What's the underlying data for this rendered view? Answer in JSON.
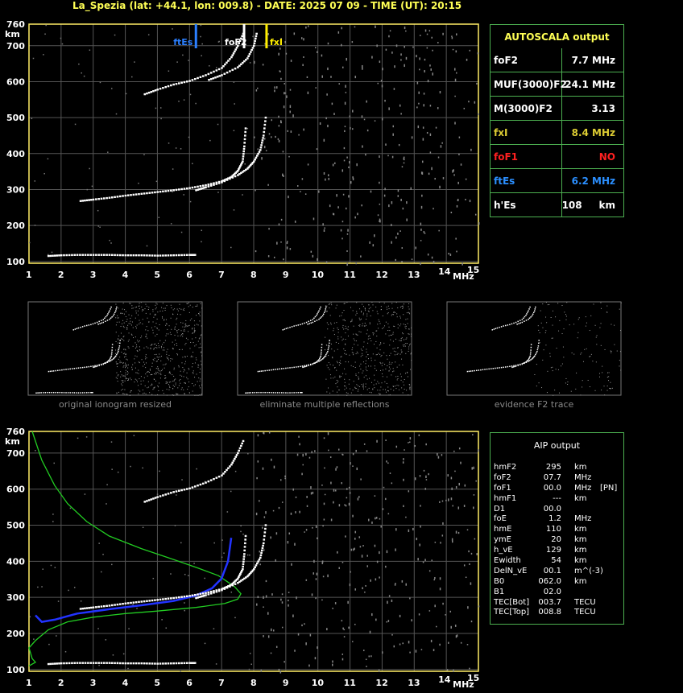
{
  "header": {
    "title": "La_Spezia (lat: +44.1, lon: 009.8) - DATE: 2025 07 09 - TIME (UT): 20:15"
  },
  "axes": {
    "y_unit": "km",
    "x_unit": "MHz",
    "y_ticks": [
      "760",
      "700",
      "600",
      "500",
      "400",
      "300",
      "200",
      "100"
    ],
    "y_tick_values": [
      760,
      700,
      600,
      500,
      400,
      300,
      200,
      100
    ],
    "x_ticks": [
      "1",
      "2",
      "3",
      "4",
      "5",
      "6",
      "7",
      "8",
      "9",
      "10",
      "11",
      "12",
      "13",
      "14",
      "15"
    ],
    "x_range": [
      1,
      15
    ],
    "y_range": [
      95,
      760
    ]
  },
  "markers": [
    {
      "label": "ftEs",
      "freq": 6.2,
      "color": "#2b7fff"
    },
    {
      "label": "foF2",
      "freq": 7.7,
      "color": "#ffffff"
    },
    {
      "label": "fxI",
      "freq": 8.4,
      "color": "#ffee00"
    }
  ],
  "autoscala": {
    "title": "AUTOSCALA output",
    "rows": [
      {
        "key": "foF2",
        "value": "7.7 MHz",
        "color": "#ffffff"
      },
      {
        "key": "MUF(3000)F2",
        "value": "24.1 MHz",
        "color": "#ffffff"
      },
      {
        "key": "M(3000)F2",
        "value": "3.13",
        "color": "#ffffff"
      },
      {
        "key": "fxI",
        "value": "8.4 MHz",
        "color": "#ddcc33"
      },
      {
        "key": "foF1",
        "value": "NO",
        "color": "#ff2020"
      },
      {
        "key": "ftEs",
        "value": "6.2 MHz",
        "color": "#2b8fff"
      },
      {
        "key": "h'Es",
        "value": "108     km",
        "color": "#ffffff"
      }
    ]
  },
  "thumbnails": [
    {
      "caption": "original ionogram resized"
    },
    {
      "caption": "eliminate multiple reflections"
    },
    {
      "caption": "evidence F2 trace"
    }
  ],
  "aip": {
    "title": "AIP output",
    "rows": [
      {
        "k": "hmF2",
        "v": "295",
        "u": "km",
        "x": ""
      },
      {
        "k": "foF2",
        "v": "07.7",
        "u": "MHz",
        "x": ""
      },
      {
        "k": "foF1",
        "v": "00.0",
        "u": "MHz",
        "x": "[PN]"
      },
      {
        "k": "hmF1",
        "v": "---",
        "u": "km",
        "x": ""
      },
      {
        "k": "D1",
        "v": "00.0",
        "u": "",
        "x": ""
      },
      {
        "k": "foE",
        "v": "1.2",
        "u": "MHz",
        "x": ""
      },
      {
        "k": "hmE",
        "v": "110",
        "u": "km",
        "x": ""
      },
      {
        "k": "ymE",
        "v": "20",
        "u": "km",
        "x": ""
      },
      {
        "k": "h_vE",
        "v": "129",
        "u": "km",
        "x": ""
      },
      {
        "k": "Ewidth",
        "v": "54",
        "u": "km",
        "x": ""
      },
      {
        "k": "DelN_vE",
        "v": "00.1",
        "u": "m^(-3)",
        "x": ""
      },
      {
        "k": "B0",
        "v": "062.0",
        "u": "km",
        "x": ""
      },
      {
        "k": "B1",
        "v": "02.0",
        "u": "",
        "x": ""
      },
      {
        "k": "TEC[Bot]",
        "v": "003.7",
        "u": "TECU",
        "x": ""
      },
      {
        "k": "TEC[Top]",
        "v": "008.8",
        "u": "TECU",
        "x": ""
      }
    ]
  },
  "chart_data": [
    {
      "type": "scatter",
      "title": "",
      "xlabel": "MHz",
      "ylabel": "km",
      "xlim": [
        1,
        15
      ],
      "ylim": [
        95,
        760
      ],
      "grid": true,
      "series": [
        {
          "values": [
            [
              1.6,
              115
            ],
            [
              2,
              117
            ],
            [
              2.5,
              118
            ],
            [
              3,
              118
            ],
            [
              3.5,
              118
            ],
            [
              4,
              117
            ],
            [
              4.5,
              117
            ],
            [
              5,
              116
            ],
            [
              5.5,
              117
            ],
            [
              6,
              118
            ],
            [
              6.2,
              118
            ]
          ]
        },
        {
          "values": [
            [
              2.6,
              268
            ],
            [
              3,
              272
            ],
            [
              3.5,
              277
            ],
            [
              4,
              283
            ],
            [
              4.5,
              288
            ],
            [
              5,
              293
            ],
            [
              5.5,
              298
            ],
            [
              6,
              304
            ],
            [
              6.5,
              312
            ],
            [
              7,
              323
            ],
            [
              7.3,
              335
            ],
            [
              7.5,
              352
            ],
            [
              7.65,
              378
            ],
            [
              7.7,
              420
            ],
            [
              7.75,
              480
            ]
          ]
        },
        {
          "values": [
            [
              6.2,
              298
            ],
            [
              6.5,
              306
            ],
            [
              7,
              320
            ],
            [
              7.5,
              340
            ],
            [
              7.8,
              358
            ],
            [
              8.0,
              378
            ],
            [
              8.2,
              410
            ],
            [
              8.3,
              450
            ],
            [
              8.38,
              510
            ]
          ]
        },
        {
          "values": [
            [
              4.6,
              565
            ],
            [
              5,
              578
            ],
            [
              5.5,
              592
            ],
            [
              6,
              602
            ],
            [
              6.5,
              618
            ],
            [
              7,
              638
            ],
            [
              7.3,
              668
            ],
            [
              7.5,
              700
            ],
            [
              7.7,
              740
            ]
          ]
        },
        {
          "values": [
            [
              6.6,
              605
            ],
            [
              7,
              618
            ],
            [
              7.5,
              640
            ],
            [
              7.8,
              665
            ],
            [
              8.0,
              700
            ],
            [
              8.1,
              740
            ]
          ]
        }
      ]
    },
    {
      "type": "line",
      "title": "",
      "xlabel": "MHz",
      "ylabel": "km",
      "xlim": [
        1,
        15
      ],
      "ylim": [
        95,
        760
      ],
      "grid": true,
      "series": [
        {
          "color": "#22cc22",
          "values": [
            [
              1.1,
              760
            ],
            [
              1.4,
              680
            ],
            [
              1.8,
              610
            ],
            [
              2.2,
              560
            ],
            [
              2.8,
              510
            ],
            [
              3.5,
              470
            ],
            [
              4.5,
              435
            ],
            [
              5.5,
              405
            ],
            [
              6.3,
              380
            ],
            [
              6.9,
              360
            ],
            [
              7.4,
              330
            ],
            [
              7.6,
              310
            ],
            [
              7.5,
              295
            ],
            [
              7.1,
              283
            ],
            [
              6.2,
              272
            ],
            [
              5,
              262
            ],
            [
              4,
              255
            ],
            [
              3,
              245
            ],
            [
              2.2,
              232
            ],
            [
              1.6,
              210
            ],
            [
              1.2,
              180
            ],
            [
              1,
              160
            ],
            [
              1.1,
              130
            ],
            [
              1.2,
              120
            ],
            [
              1,
              110
            ]
          ]
        },
        {
          "color": "#2233ff",
          "values": [
            [
              1.2,
              250
            ],
            [
              1.4,
              232
            ],
            [
              1.8,
              238
            ],
            [
              2.5,
              255
            ],
            [
              3.5,
              267
            ],
            [
              4.5,
              278
            ],
            [
              5.5,
              290
            ],
            [
              6.2,
              305
            ],
            [
              6.7,
              325
            ],
            [
              7.0,
              352
            ],
            [
              7.2,
              400
            ],
            [
              7.3,
              465
            ]
          ]
        },
        {
          "values": [
            [
              2.6,
              268
            ],
            [
              3,
              272
            ],
            [
              3.5,
              277
            ],
            [
              4,
              283
            ],
            [
              4.5,
              288
            ],
            [
              5,
              293
            ],
            [
              5.5,
              298
            ],
            [
              6,
              304
            ],
            [
              6.5,
              312
            ],
            [
              7,
              323
            ],
            [
              7.3,
              335
            ],
            [
              7.5,
              352
            ],
            [
              7.65,
              378
            ],
            [
              7.7,
              420
            ],
            [
              7.75,
              480
            ]
          ]
        },
        {
          "values": [
            [
              6.2,
              298
            ],
            [
              6.5,
              306
            ],
            [
              7,
              320
            ],
            [
              7.5,
              340
            ],
            [
              7.8,
              358
            ],
            [
              8.0,
              378
            ],
            [
              8.2,
              410
            ],
            [
              8.3,
              450
            ],
            [
              8.38,
              510
            ]
          ]
        },
        {
          "values": [
            [
              4.6,
              565
            ],
            [
              5,
              578
            ],
            [
              5.5,
              592
            ],
            [
              6,
              602
            ],
            [
              6.5,
              618
            ],
            [
              7,
              638
            ],
            [
              7.3,
              668
            ],
            [
              7.5,
              700
            ],
            [
              7.7,
              740
            ]
          ]
        },
        {
          "values": [
            [
              1.6,
              115
            ],
            [
              2,
              117
            ],
            [
              2.5,
              118
            ],
            [
              3,
              118
            ],
            [
              3.5,
              118
            ],
            [
              4,
              117
            ],
            [
              4.5,
              117
            ],
            [
              5,
              116
            ],
            [
              5.5,
              117
            ],
            [
              6,
              118
            ],
            [
              6.2,
              118
            ]
          ]
        }
      ]
    }
  ]
}
